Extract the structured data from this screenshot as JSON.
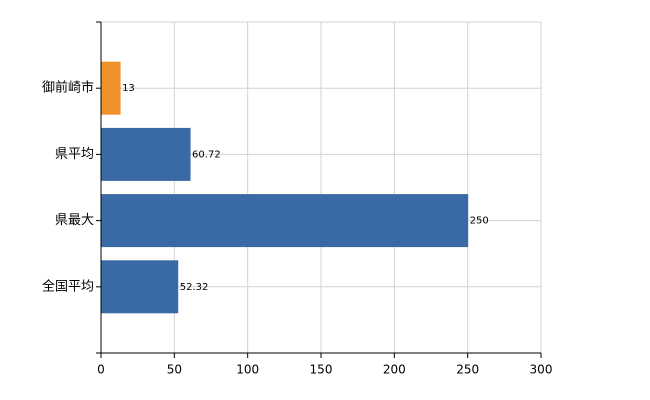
{
  "chart_data": {
    "type": "bar",
    "orientation": "horizontal",
    "categories": [
      "御前崎市",
      "県平均",
      "県最大",
      "全国平均"
    ],
    "values": [
      13,
      60.72,
      250,
      52.32
    ],
    "colors": [
      "#f0912c",
      "#3a6aa5",
      "#3a6aa5",
      "#3a6aa5"
    ],
    "xlim": [
      0,
      300
    ],
    "xticks": [
      0,
      50,
      100,
      150,
      200,
      250,
      300
    ],
    "grid": true
  }
}
